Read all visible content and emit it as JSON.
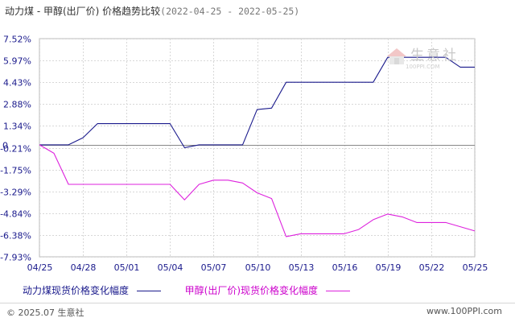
{
  "title": {
    "name": "动力煤 - 甲醇(出厂价) 价格趋势比较",
    "range": "(2022-04-25 - 2022-05-25)"
  },
  "watermark": {
    "text": "生意社",
    "sub": "100PPI.COM"
  },
  "footer": {
    "copyright": "© 2025.07 生意社",
    "site": "www.100PPI.com"
  },
  "colors": {
    "series1": "#1a1a8c",
    "series2": "#dd22dd",
    "grid": "#d8d8d8",
    "axis": "#666666"
  },
  "chart_data": {
    "type": "line",
    "title": "动力煤 - 甲醇(出厂价) 价格趋势比较",
    "xlabel": "",
    "ylabel": "",
    "ylim": [
      -7.93,
      7.52
    ],
    "yticks": [
      "7.52%",
      "5.97%",
      "4.43%",
      "2.88%",
      "1.34%",
      "-0.21%",
      "-1.75%",
      "-3.29%",
      "-4.84%",
      "-6.38%",
      "-7.93%"
    ],
    "ytick_values": [
      7.52,
      5.97,
      4.43,
      2.88,
      1.34,
      -0.21,
      -1.75,
      -3.29,
      -4.84,
      -6.38,
      -7.93
    ],
    "zero_label": "0",
    "x_range": [
      "2022-04-25",
      "2022-05-25"
    ],
    "xticks": [
      "04/25",
      "04/28",
      "05/01",
      "05/04",
      "05/07",
      "05/10",
      "05/13",
      "05/16",
      "05/19",
      "05/22",
      "05/25"
    ],
    "xtick_dates": [
      "2022-04-25",
      "2022-04-28",
      "2022-05-01",
      "2022-05-04",
      "2022-05-07",
      "2022-05-10",
      "2022-05-13",
      "2022-05-16",
      "2022-05-19",
      "2022-05-22",
      "2022-05-25"
    ],
    "grid": true,
    "series": [
      {
        "name": "动力煤现货价格变化幅度",
        "points": [
          [
            "2022-04-25",
            0.0
          ],
          [
            "2022-04-26",
            0.0
          ],
          [
            "2022-04-27",
            0.0
          ],
          [
            "2022-04-28",
            0.5
          ],
          [
            "2022-04-29",
            1.5
          ],
          [
            "2022-05-04",
            1.5
          ],
          [
            "2022-05-05",
            -0.2
          ],
          [
            "2022-05-06",
            0.0
          ],
          [
            "2022-05-09",
            0.0
          ],
          [
            "2022-05-10",
            2.5
          ],
          [
            "2022-05-11",
            2.6
          ],
          [
            "2022-05-12",
            4.43
          ],
          [
            "2022-05-18",
            4.43
          ],
          [
            "2022-05-19",
            6.2
          ],
          [
            "2022-05-23",
            6.2
          ],
          [
            "2022-05-24",
            5.5
          ],
          [
            "2022-05-25",
            5.5
          ]
        ]
      },
      {
        "name": "甲醇(出厂价)现货价格变化幅度",
        "points": [
          [
            "2022-04-25",
            0.0
          ],
          [
            "2022-04-26",
            -0.6
          ],
          [
            "2022-04-27",
            -2.8
          ],
          [
            "2022-05-04",
            -2.8
          ],
          [
            "2022-05-05",
            -3.9
          ],
          [
            "2022-05-06",
            -2.8
          ],
          [
            "2022-05-07",
            -2.5
          ],
          [
            "2022-05-08",
            -2.5
          ],
          [
            "2022-05-09",
            -2.7
          ],
          [
            "2022-05-10",
            -3.4
          ],
          [
            "2022-05-11",
            -3.8
          ],
          [
            "2022-05-12",
            -6.5
          ],
          [
            "2022-05-13",
            -6.3
          ],
          [
            "2022-05-16",
            -6.3
          ],
          [
            "2022-05-17",
            -6.0
          ],
          [
            "2022-05-18",
            -5.3
          ],
          [
            "2022-05-19",
            -4.9
          ],
          [
            "2022-05-20",
            -5.1
          ],
          [
            "2022-05-21",
            -5.5
          ],
          [
            "2022-05-23",
            -5.5
          ],
          [
            "2022-05-25",
            -6.1
          ]
        ]
      }
    ]
  }
}
